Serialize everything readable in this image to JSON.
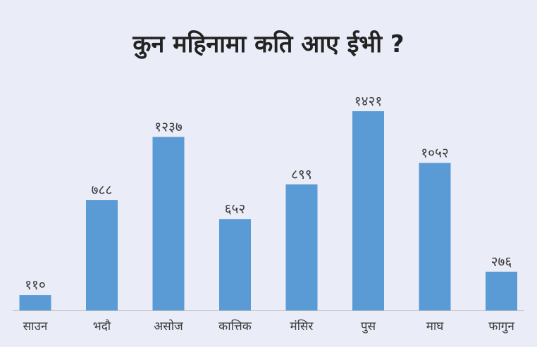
{
  "chart_data": {
    "type": "bar",
    "title": "कुन महिनामा कति आए ईभी ?",
    "categories": [
      "साउन",
      "भदौ",
      "असोज",
      "कात्तिक",
      "मंसिर",
      "पुस",
      "माघ",
      "फागुन"
    ],
    "values": [
      110,
      788,
      1237,
      652,
      899,
      1421,
      1052,
      276
    ],
    "data_labels": [
      "११०",
      "७८८",
      "१२३७",
      "६५२",
      "८९९",
      "१४२१",
      "१०५२",
      "२७६"
    ],
    "xlabel": "",
    "ylabel": "",
    "ylim": [
      0,
      1421
    ],
    "grid": false,
    "legend": "none",
    "bar_color": "#5b9bd5",
    "axis_color": "#bcbcbc"
  }
}
